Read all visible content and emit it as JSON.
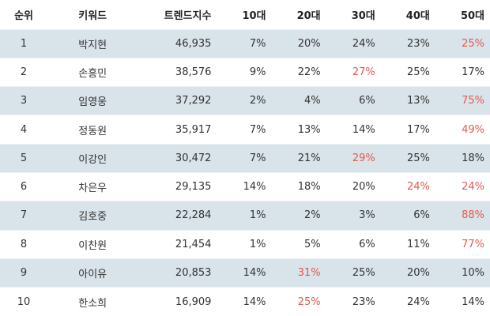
{
  "table": {
    "headers": [
      "순위",
      "키워드",
      "트렌드지수",
      "10대",
      "20대",
      "30대",
      "40대",
      "50대"
    ],
    "highlight_color": "#e05a4f",
    "stripe_color": "#d9e3ea",
    "rows": [
      {
        "rank": "1",
        "keyword": "박지현",
        "trend": "46,935",
        "ages": [
          "7%",
          "20%",
          "24%",
          "23%",
          "25%"
        ],
        "highlight": [
          4
        ]
      },
      {
        "rank": "2",
        "keyword": "손흥민",
        "trend": "38,576",
        "ages": [
          "9%",
          "22%",
          "27%",
          "25%",
          "17%"
        ],
        "highlight": [
          2
        ]
      },
      {
        "rank": "3",
        "keyword": "임영웅",
        "trend": "37,292",
        "ages": [
          "2%",
          "4%",
          "6%",
          "13%",
          "75%"
        ],
        "highlight": [
          4
        ]
      },
      {
        "rank": "4",
        "keyword": "정동원",
        "trend": "35,917",
        "ages": [
          "7%",
          "13%",
          "14%",
          "17%",
          "49%"
        ],
        "highlight": [
          4
        ]
      },
      {
        "rank": "5",
        "keyword": "이강인",
        "trend": "30,472",
        "ages": [
          "7%",
          "21%",
          "29%",
          "25%",
          "18%"
        ],
        "highlight": [
          2
        ]
      },
      {
        "rank": "6",
        "keyword": "차은우",
        "trend": "29,135",
        "ages": [
          "14%",
          "18%",
          "20%",
          "24%",
          "24%"
        ],
        "highlight": [
          3,
          4
        ]
      },
      {
        "rank": "7",
        "keyword": "김호중",
        "trend": "22,284",
        "ages": [
          "1%",
          "2%",
          "3%",
          "6%",
          "88%"
        ],
        "highlight": [
          4
        ]
      },
      {
        "rank": "8",
        "keyword": "이찬원",
        "trend": "21,454",
        "ages": [
          "1%",
          "5%",
          "6%",
          "11%",
          "77%"
        ],
        "highlight": [
          4
        ]
      },
      {
        "rank": "9",
        "keyword": "아이유",
        "trend": "20,853",
        "ages": [
          "14%",
          "31%",
          "25%",
          "20%",
          "10%"
        ],
        "highlight": [
          1
        ]
      },
      {
        "rank": "10",
        "keyword": "한소희",
        "trend": "16,909",
        "ages": [
          "14%",
          "25%",
          "23%",
          "24%",
          "14%"
        ],
        "highlight": [
          1
        ]
      }
    ]
  }
}
